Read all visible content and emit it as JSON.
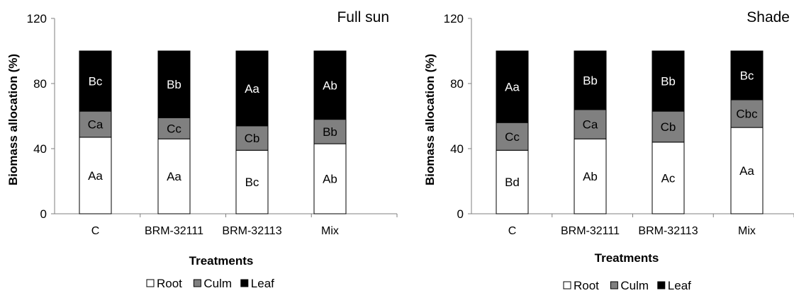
{
  "chart_data": [
    {
      "type": "bar",
      "stacked": true,
      "title": "Full sun",
      "xlabel": "Treatments",
      "ylabel": "Biomass allocation (%)",
      "ylim": [
        0,
        120
      ],
      "yticks": [
        "0",
        "40",
        "80",
        "120"
      ],
      "categories": [
        "C",
        "BRM-32111",
        "BRM-32113",
        "Mix"
      ],
      "series": [
        {
          "name": "Root",
          "color": "#ffffff",
          "values": [
            47,
            46,
            39,
            43
          ],
          "labels": [
            "Aa",
            "Aa",
            "Bc",
            "Ab"
          ]
        },
        {
          "name": "Culm",
          "color": "#808080",
          "values": [
            16,
            13,
            15,
            15
          ],
          "labels": [
            "Ca",
            "Cc",
            "Cb",
            "Bb"
          ]
        },
        {
          "name": "Leaf",
          "color": "#000000",
          "values": [
            37,
            41,
            46,
            42
          ],
          "labels": [
            "Bc",
            "Bb",
            "Aa",
            "Ab"
          ]
        }
      ],
      "legend": "bottom"
    },
    {
      "type": "bar",
      "stacked": true,
      "title": "Shade",
      "xlabel": "Treatments",
      "ylabel": "Biomass allocation (%)",
      "ylim": [
        0,
        120
      ],
      "yticks": [
        "0",
        "40",
        "80",
        "120"
      ],
      "categories": [
        "C",
        "BRM-32111",
        "BRM-32113",
        "Mix"
      ],
      "series": [
        {
          "name": "Root",
          "color": "#ffffff",
          "values": [
            39,
            46,
            44,
            53
          ],
          "labels": [
            "Bd",
            "Ab",
            "Ac",
            "Aa"
          ]
        },
        {
          "name": "Culm",
          "color": "#808080",
          "values": [
            17,
            18,
            19,
            17
          ],
          "labels": [
            "Cc",
            "Ca",
            "Cb",
            "Cbc"
          ]
        },
        {
          "name": "Leaf",
          "color": "#000000",
          "values": [
            44,
            36,
            37,
            30
          ],
          "labels": [
            "Aa",
            "Bb",
            "Bb",
            "Bc"
          ]
        }
      ],
      "legend": "bottom"
    }
  ]
}
